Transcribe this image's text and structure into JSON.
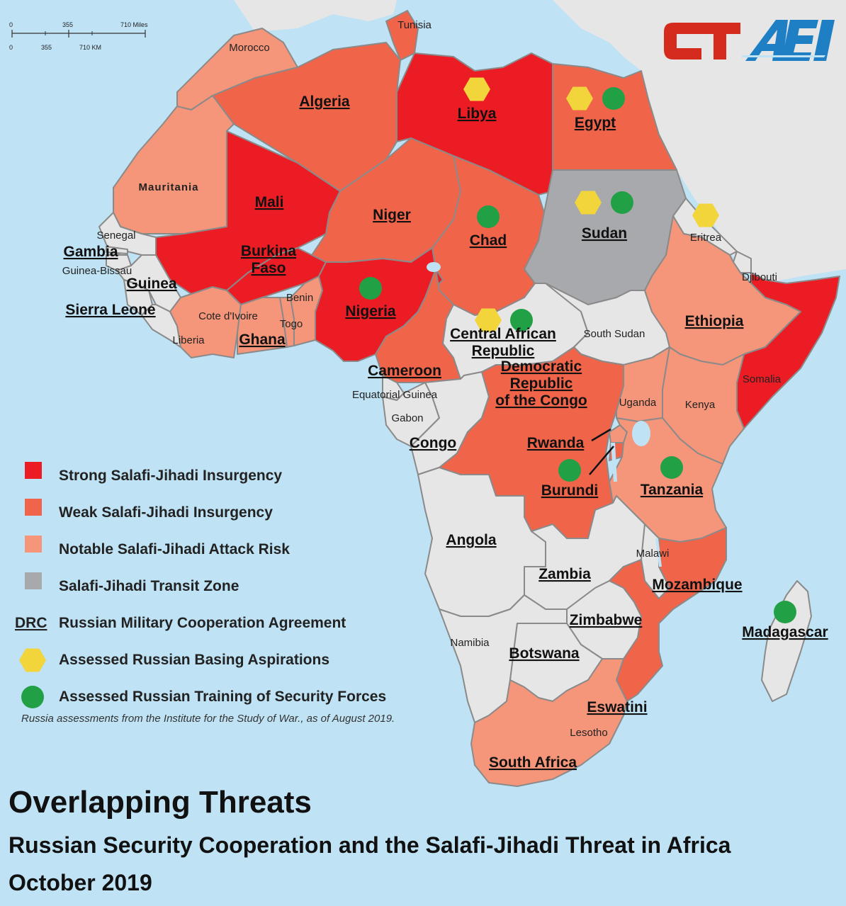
{
  "title": "Overlapping Threats",
  "subtitle": "Russian Security Cooperation and the Salafi-Jihadi Threat in Africa",
  "date": "October 2019",
  "note": "Russia assessments from the Institute for the Study of War., as of August 2019.",
  "logos": {
    "ct": "CT",
    "aei": "AEI"
  },
  "scale": {
    "miles": [
      "0",
      "355",
      "710 Miles"
    ],
    "km": [
      "0",
      "355",
      "710 KM"
    ]
  },
  "colors": {
    "ocean": "#bfe3f5",
    "strong": "#ec1c24",
    "weak": "#f0644a",
    "notable": "#f5967a",
    "transit": "#a7a9ac",
    "none": "#e6e6e6",
    "basing": "#f1d53a",
    "training": "#22a046",
    "ct_logo": "#d52b1e",
    "aei_logo": "#1f7fc4"
  },
  "legend": [
    {
      "key": "strong",
      "label": "Strong Salafi-Jihadi Insurgency"
    },
    {
      "key": "weak",
      "label": "Weak Salafi-Jihadi Insurgency"
    },
    {
      "key": "notable",
      "label": "Notable Salafi-Jihadi Attack Risk"
    },
    {
      "key": "transit",
      "label": "Salafi-Jihadi Transit Zone"
    },
    {
      "key": "agreement",
      "swatch_text": "DRC",
      "label": "Russian Military Cooperation Agreement"
    },
    {
      "key": "basing",
      "label": "Assessed Russian Basing Aspirations"
    },
    {
      "key": "training",
      "label": "Assessed Russian Training of Security Forces"
    }
  ],
  "countries": [
    {
      "name": "Morocco",
      "category": "notable",
      "agreement": false,
      "basing": false,
      "training": false
    },
    {
      "name": "Tunisia",
      "category": "weak",
      "agreement": false,
      "basing": false,
      "training": false
    },
    {
      "name": "Algeria",
      "category": "weak",
      "agreement": true,
      "basing": false,
      "training": false
    },
    {
      "name": "Libya",
      "category": "strong",
      "agreement": true,
      "basing": true,
      "training": false
    },
    {
      "name": "Egypt",
      "category": "weak",
      "agreement": true,
      "basing": true,
      "training": true
    },
    {
      "name": "Mauritania",
      "category": "notable",
      "agreement": false,
      "basing": false,
      "training": false
    },
    {
      "name": "Mali",
      "category": "strong",
      "agreement": true,
      "basing": false,
      "training": false
    },
    {
      "name": "Niger",
      "category": "weak",
      "agreement": true,
      "basing": false,
      "training": false
    },
    {
      "name": "Chad",
      "category": "weak",
      "agreement": true,
      "basing": false,
      "training": true
    },
    {
      "name": "Sudan",
      "category": "transit",
      "agreement": true,
      "basing": true,
      "training": true
    },
    {
      "name": "Eritrea",
      "category": "none",
      "agreement": false,
      "basing": true,
      "training": false
    },
    {
      "name": "Djibouti",
      "category": "none",
      "agreement": false,
      "basing": false,
      "training": false
    },
    {
      "name": "Senegal",
      "category": "none",
      "agreement": false,
      "basing": false,
      "training": false
    },
    {
      "name": "Gambia",
      "category": "none",
      "agreement": true,
      "basing": false,
      "training": false
    },
    {
      "name": "Guinea-Bissau",
      "category": "none",
      "agreement": false,
      "basing": false,
      "training": false
    },
    {
      "name": "Guinea",
      "category": "none",
      "agreement": true,
      "basing": false,
      "training": false
    },
    {
      "name": "Sierra Leone",
      "category": "none",
      "agreement": true,
      "basing": false,
      "training": false
    },
    {
      "name": "Liberia",
      "category": "none",
      "agreement": false,
      "basing": false,
      "training": false
    },
    {
      "name": "Cote d'Ivoire",
      "category": "notable",
      "agreement": false,
      "basing": false,
      "training": false
    },
    {
      "name": "Burkina Faso",
      "category": "strong",
      "agreement": true,
      "basing": false,
      "training": false
    },
    {
      "name": "Ghana",
      "category": "notable",
      "agreement": true,
      "basing": false,
      "training": false
    },
    {
      "name": "Togo",
      "category": "notable",
      "agreement": false,
      "basing": false,
      "training": false
    },
    {
      "name": "Benin",
      "category": "notable",
      "agreement": false,
      "basing": false,
      "training": false
    },
    {
      "name": "Nigeria",
      "category": "strong",
      "agreement": true,
      "basing": false,
      "training": true
    },
    {
      "name": "Cameroon",
      "category": "weak",
      "agreement": true,
      "basing": false,
      "training": false
    },
    {
      "name": "Central African Republic",
      "category": "none",
      "agreement": true,
      "basing": true,
      "training": true
    },
    {
      "name": "South Sudan",
      "category": "none",
      "agreement": false,
      "basing": false,
      "training": false
    },
    {
      "name": "Ethiopia",
      "category": "notable",
      "agreement": true,
      "basing": false,
      "training": false
    },
    {
      "name": "Somalia",
      "category": "strong",
      "agreement": false,
      "basing": false,
      "training": false
    },
    {
      "name": "Equatorial Guinea",
      "category": "none",
      "agreement": false,
      "basing": false,
      "training": false
    },
    {
      "name": "Gabon",
      "category": "none",
      "agreement": false,
      "basing": false,
      "training": false
    },
    {
      "name": "Congo",
      "category": "none",
      "agreement": true,
      "basing": false,
      "training": false
    },
    {
      "name": "Democratic Republic of the Congo",
      "category": "weak",
      "agreement": true,
      "basing": false,
      "training": false
    },
    {
      "name": "Uganda",
      "category": "notable",
      "agreement": false,
      "basing": false,
      "training": false
    },
    {
      "name": "Kenya",
      "category": "notable",
      "agreement": false,
      "basing": false,
      "training": false
    },
    {
      "name": "Rwanda",
      "category": "notable",
      "agreement": true,
      "basing": false,
      "training": false
    },
    {
      "name": "Burundi",
      "category": "weak",
      "agreement": true,
      "basing": false,
      "training": true
    },
    {
      "name": "Tanzania",
      "category": "notable",
      "agreement": true,
      "basing": false,
      "training": true
    },
    {
      "name": "Angola",
      "category": "none",
      "agreement": true,
      "basing": false,
      "training": false
    },
    {
      "name": "Zambia",
      "category": "none",
      "agreement": true,
      "basing": false,
      "training": false
    },
    {
      "name": "Malawi",
      "category": "none",
      "agreement": false,
      "basing": false,
      "training": false
    },
    {
      "name": "Mozambique",
      "category": "weak",
      "agreement": true,
      "basing": false,
      "training": false
    },
    {
      "name": "Zimbabwe",
      "category": "none",
      "agreement": true,
      "basing": false,
      "training": false
    },
    {
      "name": "Namibia",
      "category": "none",
      "agreement": false,
      "basing": false,
      "training": false
    },
    {
      "name": "Botswana",
      "category": "none",
      "agreement": true,
      "basing": false,
      "training": false
    },
    {
      "name": "Madagascar",
      "category": "none",
      "agreement": true,
      "basing": false,
      "training": true
    },
    {
      "name": "Eswatini",
      "category": "notable",
      "agreement": true,
      "basing": false,
      "training": false
    },
    {
      "name": "Lesotho",
      "category": "notable",
      "agreement": false,
      "basing": false,
      "training": false
    },
    {
      "name": "South Africa",
      "category": "notable",
      "agreement": true,
      "basing": false,
      "training": false
    }
  ],
  "labels": {
    "Morocco": "Morocco",
    "Tunisia": "Tunisia",
    "Algeria": "Algeria",
    "Libya": "Libya",
    "Egypt": "Egypt",
    "Mauritania": "Mauritania",
    "Mali": "Mali",
    "Niger": "Niger",
    "Chad": "Chad",
    "Sudan": "Sudan",
    "Eritrea": "Eritrea",
    "Djibouti": "Djibouti",
    "Senegal": "Senegal",
    "Gambia": "Gambia",
    "Guinea-Bissau": "Guinea-Bissau",
    "Guinea": "Guinea",
    "Sierra Leone": "Sierra Leone",
    "Liberia": "Liberia",
    "Cote d'Ivoire": "Cote d'Ivoire",
    "Burkina Faso": "Burkina Faso",
    "Ghana": "Ghana",
    "Togo": "Togo",
    "Benin": "Benin",
    "Nigeria": "Nigeria",
    "Cameroon": "Cameroon",
    "Central African Republic": "Central African Republic",
    "South Sudan": "South Sudan",
    "Ethiopia": "Ethiopia",
    "Somalia": "Somalia",
    "Equatorial Guinea": "Equatorial Guinea",
    "Gabon": "Gabon",
    "Congo": "Congo",
    "Democratic Republic of the Congo": "Democratic Republic of the Congo",
    "Uganda": "Uganda",
    "Kenya": "Kenya",
    "Rwanda": "Rwanda",
    "Burundi": "Burundi",
    "Tanzania": "Tanzania",
    "Angola": "Angola",
    "Zambia": "Zambia",
    "Malawi": "Malawi",
    "Mozambique": "Mozambique",
    "Zimbabwe": "Zimbabwe",
    "Namibia": "Namibia",
    "Botswana": "Botswana",
    "Madagascar": "Madagascar",
    "Eswatini": "Eswatini",
    "Lesotho": "Lesotho",
    "South Africa": "South Africa"
  }
}
